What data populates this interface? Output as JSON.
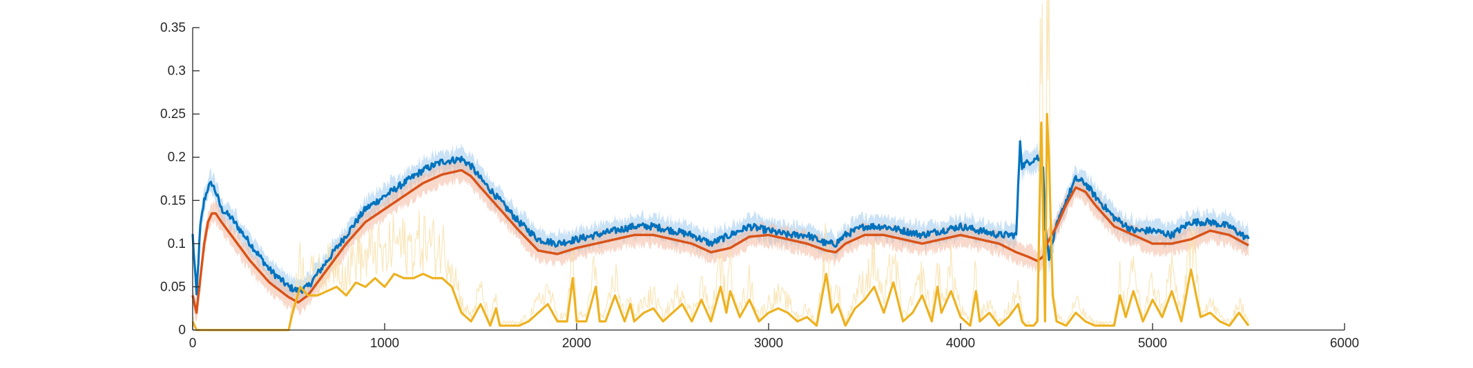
{
  "chart_data": {
    "type": "line",
    "title": "",
    "xlabel": "",
    "ylabel": "",
    "xlim": [
      0,
      6000
    ],
    "ylim": [
      0,
      0.35
    ],
    "xticks": [
      0,
      1000,
      2000,
      3000,
      4000,
      5000,
      6000
    ],
    "yticks": [
      0,
      0.05,
      0.1,
      0.15,
      0.2,
      0.25,
      0.3,
      0.35
    ],
    "xtick_labels": [
      "0",
      "1000",
      "2000",
      "3000",
      "4000",
      "5000",
      "6000"
    ],
    "ytick_labels": [
      "0",
      "0.05",
      "0.1",
      "0.15",
      "0.2",
      "0.25",
      "0.3",
      "0.35"
    ],
    "grid": false,
    "legend": "none",
    "series": [
      {
        "color": "#0072BD",
        "band_color": "#9fcbef",
        "x": [
          0,
          20,
          40,
          60,
          80,
          100,
          120,
          150,
          200,
          300,
          400,
          500,
          550,
          600,
          700,
          800,
          900,
          1000,
          1100,
          1200,
          1300,
          1400,
          1450,
          1500,
          1600,
          1700,
          1800,
          1900,
          2000,
          2100,
          2200,
          2300,
          2400,
          2500,
          2600,
          2700,
          2800,
          2900,
          3000,
          3100,
          3200,
          3300,
          3350,
          3400,
          3500,
          3600,
          3700,
          3800,
          3900,
          4000,
          4100,
          4200,
          4290,
          4310,
          4320,
          4400,
          4430,
          4440,
          4460,
          4500,
          4550,
          4600,
          4650,
          4700,
          4800,
          4900,
          5000,
          5100,
          5200,
          5300,
          5400,
          5500
        ],
        "y": [
          0.11,
          0.04,
          0.12,
          0.15,
          0.165,
          0.17,
          0.16,
          0.14,
          0.13,
          0.1,
          0.07,
          0.05,
          0.045,
          0.05,
          0.08,
          0.11,
          0.14,
          0.155,
          0.17,
          0.185,
          0.195,
          0.198,
          0.19,
          0.175,
          0.15,
          0.125,
          0.105,
          0.1,
          0.105,
          0.11,
          0.115,
          0.12,
          0.12,
          0.115,
          0.11,
          0.1,
          0.11,
          0.12,
          0.115,
          0.11,
          0.11,
          0.1,
          0.1,
          0.11,
          0.12,
          0.12,
          0.115,
          0.11,
          0.115,
          0.12,
          0.115,
          0.11,
          0.11,
          0.22,
          0.19,
          0.2,
          0.19,
          0.12,
          0.085,
          0.12,
          0.15,
          0.175,
          0.17,
          0.155,
          0.13,
          0.115,
          0.115,
          0.11,
          0.125,
          0.125,
          0.12,
          0.105
        ],
        "noise": 0.004
      },
      {
        "color": "#D95319",
        "band_color": "#f3b9a0",
        "x": [
          0,
          20,
          40,
          60,
          80,
          100,
          120,
          150,
          200,
          300,
          400,
          500,
          550,
          600,
          700,
          800,
          900,
          1000,
          1100,
          1200,
          1300,
          1400,
          1450,
          1500,
          1600,
          1700,
          1800,
          1900,
          2000,
          2100,
          2200,
          2300,
          2400,
          2500,
          2600,
          2700,
          2800,
          2900,
          3000,
          3100,
          3200,
          3300,
          3350,
          3400,
          3500,
          3600,
          3700,
          3800,
          3900,
          4000,
          4100,
          4200,
          4290,
          4350,
          4400,
          4430,
          4450,
          4500,
          4550,
          4600,
          4650,
          4700,
          4800,
          4900,
          5000,
          5100,
          5200,
          5300,
          5400,
          5500
        ],
        "y": [
          0.04,
          0.02,
          0.06,
          0.1,
          0.125,
          0.135,
          0.135,
          0.125,
          0.11,
          0.08,
          0.055,
          0.038,
          0.032,
          0.04,
          0.07,
          0.1,
          0.125,
          0.14,
          0.155,
          0.17,
          0.18,
          0.185,
          0.178,
          0.165,
          0.14,
          0.115,
          0.092,
          0.088,
          0.095,
          0.1,
          0.105,
          0.11,
          0.11,
          0.105,
          0.1,
          0.09,
          0.095,
          0.108,
          0.11,
          0.105,
          0.1,
          0.092,
          0.09,
          0.1,
          0.11,
          0.11,
          0.105,
          0.1,
          0.105,
          0.11,
          0.105,
          0.1,
          0.09,
          0.085,
          0.08,
          0.085,
          0.1,
          0.12,
          0.145,
          0.165,
          0.16,
          0.145,
          0.12,
          0.11,
          0.1,
          0.1,
          0.105,
          0.115,
          0.11,
          0.098
        ],
        "noise": 0.0
      },
      {
        "color": "#EDB120",
        "band_color": "#f8e0a8",
        "x": [
          0,
          20,
          50,
          100,
          200,
          300,
          400,
          500,
          520,
          560,
          600,
          650,
          700,
          750,
          800,
          850,
          900,
          950,
          1000,
          1050,
          1100,
          1150,
          1200,
          1250,
          1300,
          1350,
          1400,
          1450,
          1500,
          1550,
          1580,
          1600,
          1650,
          1700,
          1750,
          1800,
          1850,
          1900,
          1950,
          1980,
          2000,
          2050,
          2100,
          2120,
          2150,
          2200,
          2250,
          2280,
          2300,
          2350,
          2400,
          2450,
          2500,
          2550,
          2600,
          2650,
          2700,
          2750,
          2780,
          2800,
          2850,
          2900,
          2950,
          3000,
          3050,
          3100,
          3150,
          3200,
          3250,
          3300,
          3330,
          3360,
          3400,
          3450,
          3500,
          3550,
          3600,
          3650,
          3700,
          3750,
          3800,
          3850,
          3880,
          3900,
          3950,
          4000,
          4050,
          4080,
          4100,
          4150,
          4200,
          4250,
          4300,
          4320,
          4340,
          4380,
          4400,
          4420,
          4440,
          4450,
          4460,
          4480,
          4500,
          4550,
          4600,
          4650,
          4700,
          4750,
          4800,
          4830,
          4860,
          4900,
          4950,
          5000,
          5050,
          5100,
          5150,
          5200,
          5250,
          5300,
          5350,
          5400,
          5450,
          5500
        ],
        "y": [
          0.01,
          0,
          0,
          0,
          0,
          0,
          0,
          0,
          0.02,
          0.05,
          0.04,
          0.04,
          0.045,
          0.05,
          0.04,
          0.055,
          0.05,
          0.06,
          0.05,
          0.065,
          0.06,
          0.06,
          0.065,
          0.06,
          0.06,
          0.05,
          0.02,
          0.01,
          0.03,
          0.005,
          0.025,
          0.005,
          0.005,
          0.005,
          0.01,
          0.02,
          0.03,
          0.01,
          0.01,
          0.06,
          0.01,
          0.01,
          0.05,
          0.01,
          0.01,
          0.04,
          0.01,
          0.03,
          0.01,
          0.02,
          0.025,
          0.01,
          0.02,
          0.03,
          0.01,
          0.035,
          0.01,
          0.05,
          0.02,
          0.045,
          0.015,
          0.035,
          0.01,
          0.02,
          0.025,
          0.02,
          0.01,
          0.015,
          0.005,
          0.065,
          0.02,
          0.03,
          0.005,
          0.025,
          0.035,
          0.05,
          0.02,
          0.055,
          0.01,
          0.02,
          0.04,
          0.01,
          0.05,
          0.02,
          0.045,
          0.015,
          0.005,
          0.045,
          0.01,
          0.02,
          0.005,
          0.015,
          0.03,
          0.01,
          0.005,
          0.005,
          0.01,
          0.24,
          0.01,
          0.25,
          0.2,
          0.04,
          0.01,
          0.005,
          0.02,
          0.01,
          0.005,
          0.005,
          0.005,
          0.04,
          0.015,
          0.045,
          0.01,
          0.035,
          0.015,
          0.045,
          0.01,
          0.07,
          0.015,
          0.02,
          0.01,
          0.005,
          0.02,
          0.005
        ]
      }
    ]
  }
}
